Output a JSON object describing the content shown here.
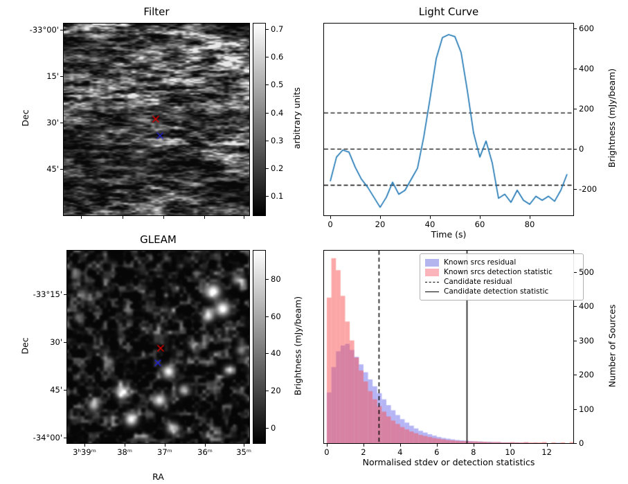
{
  "figure": {
    "background": "#ffffff"
  },
  "chart_data": [
    {
      "type": "heatmap",
      "title": "Filter",
      "xlabel": "",
      "ylabel": "Dec",
      "image_description": "grayscale sky noise map with horizontal streaky structure, gray colormap",
      "ytick_labels": [
        "-33°00'",
        "15'",
        "30'",
        "45'"
      ],
      "ytick_pos": [
        0.032,
        0.274,
        0.516,
        0.758
      ],
      "xtick_pos": [
        0.095,
        0.316,
        0.536,
        0.757,
        0.97
      ],
      "colorbar": {
        "label": "arbitrary units",
        "cmap": "gray",
        "tick_labels": [
          "0.7",
          "0.6",
          "0.5",
          "0.4",
          "0.3",
          "0.2",
          "0.1"
        ],
        "tick_pos": [
          0.029,
          0.174,
          0.319,
          0.464,
          0.609,
          0.754,
          0.899
        ]
      },
      "markers": [
        {
          "symbol": "x",
          "color": "#e00000",
          "fx": 0.496,
          "fy": 0.498
        },
        {
          "symbol": "x",
          "color": "#2222cc",
          "fx": 0.519,
          "fy": 0.585
        }
      ]
    },
    {
      "type": "line",
      "title": "Light Curve",
      "xlabel": "Time (s)",
      "ylabel": "Brightness (mJy/beam)",
      "xlim": [
        -2.5,
        97.5
      ],
      "ylim": [
        -330,
        625
      ],
      "xticks": [
        0,
        20,
        40,
        60,
        80
      ],
      "yticks": [
        600,
        400,
        200,
        0,
        -200
      ],
      "line_color": "#1f77b4",
      "x": [
        0,
        2.5,
        5,
        7.5,
        10,
        12.5,
        15,
        17.5,
        20,
        22.5,
        25,
        27.5,
        30,
        32.5,
        35,
        37.5,
        40,
        42.5,
        45,
        47.5,
        50,
        52.5,
        55,
        57.5,
        60,
        62.5,
        65,
        67.5,
        70,
        72.5,
        75,
        77.5,
        80,
        82.5,
        85,
        87.5,
        90,
        92.5,
        95
      ],
      "y": [
        -160,
        -40,
        -5,
        -15,
        -90,
        -150,
        -190,
        -240,
        -290,
        -240,
        -165,
        -225,
        -205,
        -150,
        -95,
        60,
        250,
        450,
        555,
        570,
        560,
        480,
        290,
        80,
        -40,
        40,
        -70,
        -245,
        -225,
        -265,
        -205,
        -255,
        -275,
        -235,
        -255,
        -235,
        -260,
        -205,
        -125
      ],
      "hlines": [
        {
          "y": 180,
          "style": "dashed",
          "color": "#000000"
        },
        {
          "y": 0,
          "style": "dashed",
          "color": "#000000"
        },
        {
          "y": -180,
          "style": "dashed",
          "color": "#000000"
        }
      ]
    },
    {
      "type": "heatmap",
      "title": "GLEAM",
      "xlabel": "RA",
      "ylabel": "Dec",
      "image_description": "dark grayscale GLEAM survey cutout with bright point sources, gray colormap",
      "xtick_labels": [
        "3ʰ39ᵐ",
        "38ᵐ",
        "37ᵐ",
        "36ᵐ",
        "35ᵐ"
      ],
      "xtick_pos": [
        0.095,
        0.316,
        0.536,
        0.757,
        0.97
      ],
      "ytick_labels": [
        "-33°15'",
        "30'",
        "45'",
        "-34°00'"
      ],
      "ytick_pos": [
        0.227,
        0.475,
        0.723,
        0.971
      ],
      "colorbar": {
        "label": "Brightness (mJy/beam)",
        "cmap": "gray",
        "tick_labels": [
          "80",
          "60",
          "40",
          "20",
          "0"
        ],
        "tick_pos": [
          0.146,
          0.34,
          0.534,
          0.728,
          0.922
        ]
      },
      "sources": [
        {
          "fx": 0.8,
          "fy": 0.21,
          "amp": 1.0,
          "sigma": 7
        },
        {
          "fx": 0.852,
          "fy": 0.3,
          "amp": 1.0,
          "sigma": 7
        },
        {
          "fx": 0.775,
          "fy": 0.338,
          "amp": 0.75,
          "sigma": 5.5
        },
        {
          "fx": 0.93,
          "fy": 0.15,
          "amp": 0.5,
          "sigma": 5
        },
        {
          "fx": 0.555,
          "fy": 0.625,
          "amp": 0.95,
          "sigma": 6
        },
        {
          "fx": 0.3,
          "fy": 0.735,
          "amp": 0.9,
          "sigma": 6
        },
        {
          "fx": 0.505,
          "fy": 0.775,
          "amp": 0.9,
          "sigma": 6
        },
        {
          "fx": 0.64,
          "fy": 0.72,
          "amp": 0.65,
          "sigma": 5
        },
        {
          "fx": 0.145,
          "fy": 0.8,
          "amp": 0.7,
          "sigma": 5.5
        },
        {
          "fx": 0.35,
          "fy": 0.875,
          "amp": 0.95,
          "sigma": 6
        },
        {
          "fx": 0.575,
          "fy": 0.92,
          "amp": 0.7,
          "sigma": 5.5
        },
        {
          "fx": 0.885,
          "fy": 0.62,
          "amp": 0.55,
          "sigma": 5
        },
        {
          "fx": 0.23,
          "fy": 0.575,
          "amp": 0.45,
          "sigma": 4.5
        },
        {
          "fx": 0.69,
          "fy": 0.49,
          "amp": 0.4,
          "sigma": 4.5
        },
        {
          "fx": 0.06,
          "fy": 0.345,
          "amp": 0.4,
          "sigma": 4.5
        },
        {
          "fx": 0.955,
          "fy": 0.515,
          "amp": 0.5,
          "sigma": 5
        }
      ],
      "markers": [
        {
          "symbol": "x",
          "color": "#e00000",
          "fx": 0.513,
          "fy": 0.507
        },
        {
          "symbol": "x",
          "color": "#2222cc",
          "fx": 0.498,
          "fy": 0.583
        }
      ]
    },
    {
      "type": "bar",
      "title": "",
      "xlabel": "Normalised stdev or detection statistics",
      "ylabel": "Number of Sources",
      "xlim": [
        -0.15,
        13.45
      ],
      "ylim": [
        0,
        562
      ],
      "xticks": [
        0,
        2,
        4,
        6,
        8,
        10,
        12
      ],
      "yticks": [
        0,
        100,
        200,
        300,
        400,
        500
      ],
      "bin_start": 0,
      "bin_width": 0.25,
      "series": [
        {
          "name": "Known srcs residual",
          "color": "rgba(90,90,235,0.45)",
          "counts": [
            148,
            222,
            268,
            285,
            290,
            272,
            252,
            230,
            207,
            186,
            166,
            146,
            128,
            111,
            96,
            82,
            70,
            60,
            51,
            43,
            36,
            31,
            26,
            22,
            18,
            15,
            13,
            11,
            9,
            8,
            7,
            6,
            5,
            5,
            4,
            4,
            3,
            3,
            2,
            2,
            2,
            2,
            1,
            2,
            0,
            1,
            0,
            1,
            0,
            0,
            1,
            0,
            0,
            0
          ]
        },
        {
          "name": "Known srcs detection statistic",
          "color": "rgba(250,80,80,0.5)",
          "counts": [
            425,
            540,
            505,
            430,
            355,
            300,
            250,
            212,
            180,
            152,
            128,
            108,
            92,
            78,
            66,
            56,
            47,
            40,
            34,
            29,
            24,
            21,
            18,
            15,
            13,
            11,
            9,
            8,
            7,
            6,
            6,
            5,
            5,
            4,
            4,
            3,
            3,
            3,
            2,
            2,
            3,
            2,
            2,
            3,
            2,
            2,
            2,
            3,
            0,
            2,
            0,
            2,
            0,
            3
          ]
        }
      ],
      "vlines": [
        {
          "x": 2.85,
          "style": "dashed",
          "color": "#000000",
          "label": "Candidate residual"
        },
        {
          "x": 7.65,
          "style": "solid",
          "color": "#000000",
          "label": "Candidate detection statistic"
        }
      ],
      "legend": {
        "entries": [
          {
            "swatch": "patch",
            "color": "#b4b4ef",
            "label": "Known srcs residual"
          },
          {
            "swatch": "patch",
            "color": "#fbb4b9",
            "label": "Known srcs detection statistic"
          },
          {
            "swatch": "dashed-line",
            "color": "#000000",
            "label": "Candidate residual"
          },
          {
            "swatch": "solid-line",
            "color": "#000000",
            "label": "Candidate detection statistic"
          }
        ]
      }
    }
  ]
}
